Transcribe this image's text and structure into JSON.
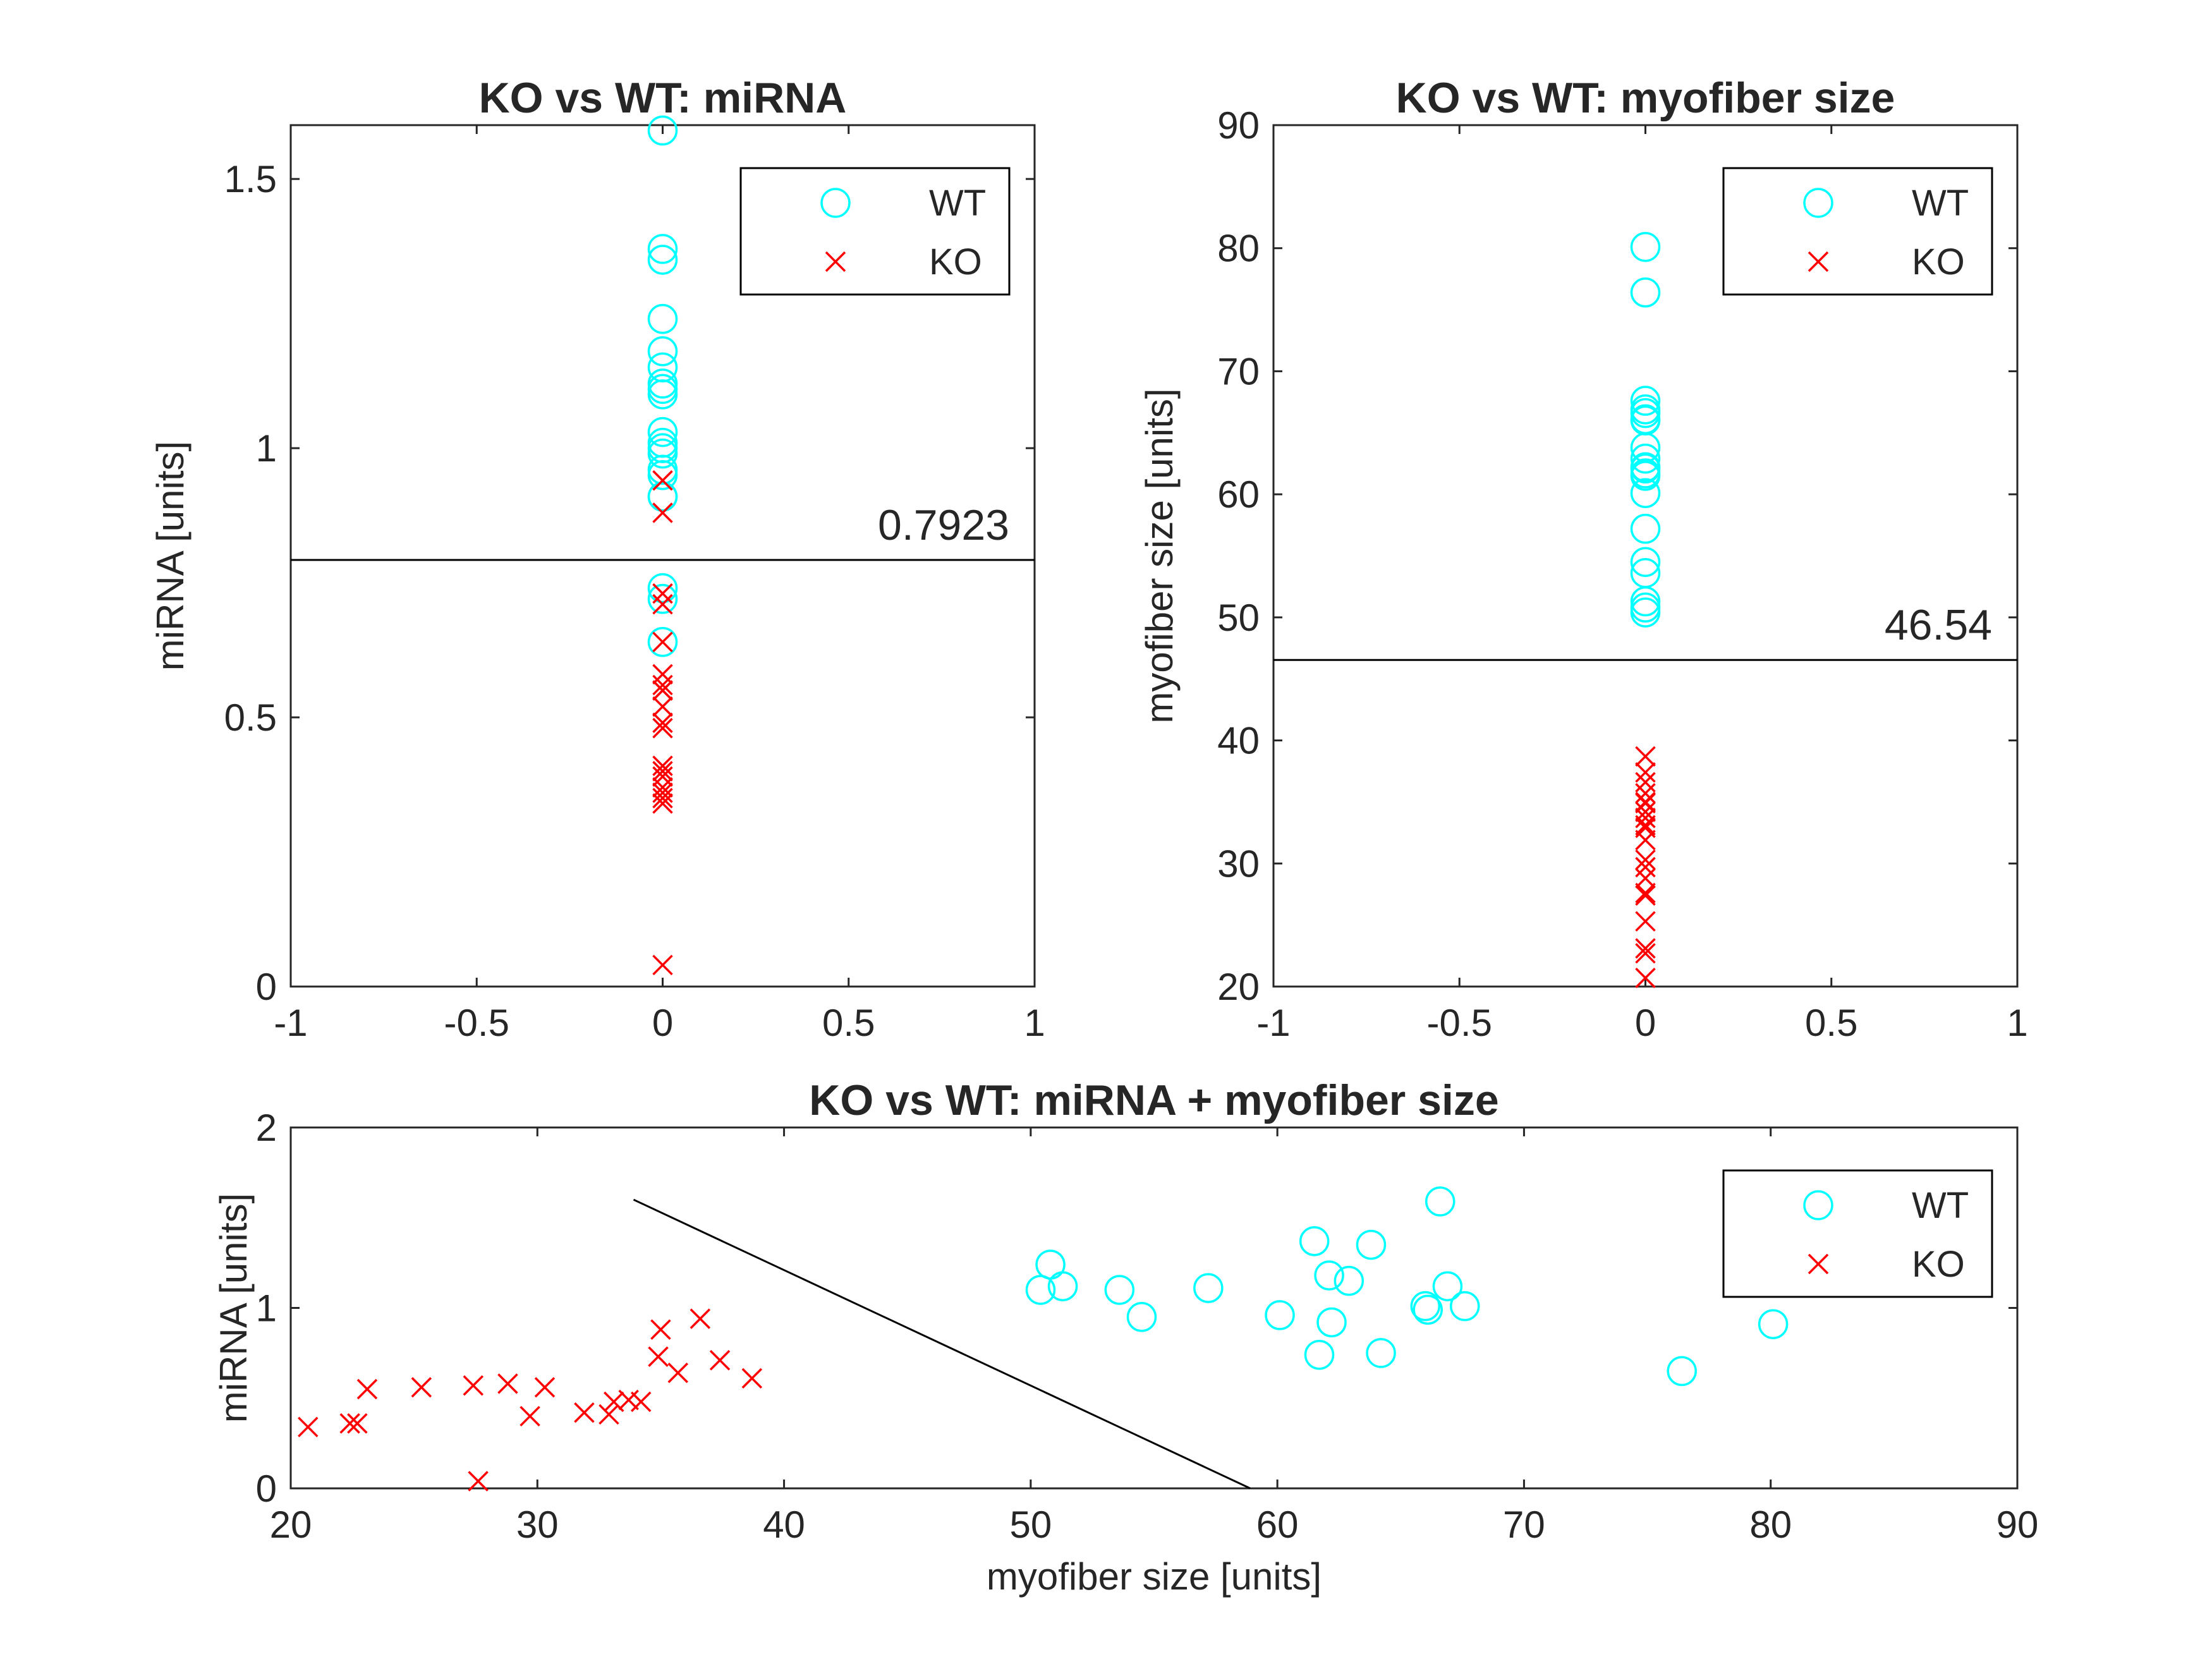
{
  "figure": {
    "colors": {
      "WT": "#00FFFF",
      "KO": "#FF0000",
      "axis": "#262626",
      "line": "#000000"
    }
  },
  "chart_data": [
    {
      "type": "scatter",
      "title": "KO vs WT: miRNA",
      "xlabel": "",
      "ylabel": "miRNA [units]",
      "xlim": [
        -1,
        1
      ],
      "ylim": [
        0,
        1.6
      ],
      "xticks": [
        "-1",
        "-0.5",
        "0",
        "0.5",
        "1"
      ],
      "yticks": [
        "0",
        "0.5",
        "1",
        "1.5"
      ],
      "legend": [
        "WT",
        "KO"
      ],
      "legend_position": "top-right",
      "threshold": {
        "value": 0.7923,
        "label": "0.7923"
      },
      "series": [
        {
          "name": "WT",
          "marker": "circle",
          "x": [
            0,
            0,
            0,
            0,
            0,
            0,
            0,
            0,
            0,
            0,
            0,
            0,
            0,
            0,
            0,
            0,
            0,
            0,
            0,
            0
          ],
          "y": [
            1.59,
            1.37,
            1.35,
            1.24,
            1.18,
            1.15,
            1.12,
            1.11,
            1.1,
            1.03,
            1.01,
            1.0,
            0.99,
            0.96,
            0.95,
            0.91,
            0.91,
            0.74,
            0.72,
            0.64
          ]
        },
        {
          "name": "KO",
          "marker": "x",
          "x": [
            0,
            0,
            0,
            0,
            0,
            0,
            0,
            0,
            0,
            0,
            0,
            0,
            0,
            0,
            0,
            0,
            0,
            0,
            0,
            0
          ],
          "y": [
            0.94,
            0.88,
            0.73,
            0.71,
            0.64,
            0.58,
            0.56,
            0.55,
            0.55,
            0.52,
            0.49,
            0.48,
            0.41,
            0.4,
            0.39,
            0.37,
            0.36,
            0.35,
            0.34,
            0.04
          ]
        }
      ]
    },
    {
      "type": "scatter",
      "title": "KO vs WT: myofiber size",
      "xlabel": "",
      "ylabel": "myofiber size [units]",
      "xlim": [
        -1,
        1
      ],
      "ylim": [
        20,
        90
      ],
      "xticks": [
        "-1",
        "-0.5",
        "0",
        "0.5",
        "1"
      ],
      "yticks": [
        "20",
        "30",
        "40",
        "50",
        "60",
        "70",
        "80",
        "90"
      ],
      "legend": [
        "WT",
        "KO"
      ],
      "legend_position": "top-right",
      "threshold": {
        "value": 46.54,
        "label": "46.54"
      },
      "series": [
        {
          "name": "WT",
          "marker": "circle",
          "x": [
            0,
            0,
            0,
            0,
            0,
            0,
            0,
            0,
            0,
            0,
            0,
            0,
            0,
            0,
            0,
            0,
            0,
            0,
            0,
            0
          ],
          "y": [
            80.1,
            76.4,
            67.6,
            66.9,
            66.6,
            66.1,
            66.0,
            63.8,
            62.9,
            62.2,
            62.1,
            61.7,
            61.5,
            60.1,
            57.2,
            54.5,
            53.6,
            51.3,
            50.8,
            50.4
          ]
        },
        {
          "name": "KO",
          "marker": "x",
          "x": [
            0,
            0,
            0,
            0,
            0,
            0,
            0,
            0,
            0,
            0,
            0,
            0,
            0,
            0,
            0,
            0,
            0,
            0,
            0,
            0
          ],
          "y": [
            38.7,
            37.4,
            36.6,
            35.7,
            35.0,
            34.9,
            34.2,
            33.7,
            33.1,
            32.9,
            31.9,
            30.3,
            29.7,
            28.8,
            27.6,
            27.4,
            25.3,
            23.1,
            22.7,
            20.7
          ]
        }
      ]
    },
    {
      "type": "scatter",
      "title": "KO vs WT: miRNA + myofiber size",
      "xlabel": "myofiber size [units]",
      "ylabel": "miRNA [units]",
      "xlim": [
        20,
        90
      ],
      "ylim": [
        0,
        2
      ],
      "xticks": [
        "20",
        "30",
        "40",
        "50",
        "60",
        "70",
        "80",
        "90"
      ],
      "yticks": [
        "0",
        "1",
        "2"
      ],
      "legend": [
        "WT",
        "KO"
      ],
      "legend_position": "top-right",
      "boundary": {
        "x": [
          33.9,
          58.9
        ],
        "y": [
          1.6,
          0.0
        ]
      },
      "series": [
        {
          "name": "WT",
          "marker": "circle",
          "x": [
            50.4,
            50.8,
            51.3,
            53.6,
            54.5,
            57.2,
            60.1,
            61.5,
            61.7,
            62.1,
            62.2,
            62.9,
            63.8,
            64.2,
            66.0,
            66.1,
            66.6,
            66.9,
            67.6,
            76.4,
            80.1
          ],
          "y": [
            1.1,
            1.24,
            1.12,
            1.1,
            0.95,
            1.11,
            0.96,
            1.37,
            0.74,
            1.18,
            0.92,
            1.15,
            1.35,
            0.75,
            1.01,
            0.99,
            1.59,
            1.12,
            1.01,
            0.65,
            0.91
          ]
        },
        {
          "name": "KO",
          "marker": "x",
          "x": [
            20.7,
            22.4,
            22.7,
            23.1,
            25.3,
            27.4,
            27.6,
            28.8,
            29.7,
            30.3,
            31.9,
            32.9,
            33.1,
            33.7,
            34.2,
            34.9,
            35.0,
            35.7,
            36.6,
            37.4,
            38.7
          ],
          "y": [
            0.34,
            0.36,
            0.36,
            0.55,
            0.56,
            0.57,
            0.04,
            0.58,
            0.4,
            0.56,
            0.42,
            0.41,
            0.48,
            0.49,
            0.48,
            0.73,
            0.88,
            0.64,
            0.94,
            0.71,
            0.61
          ]
        }
      ]
    }
  ]
}
